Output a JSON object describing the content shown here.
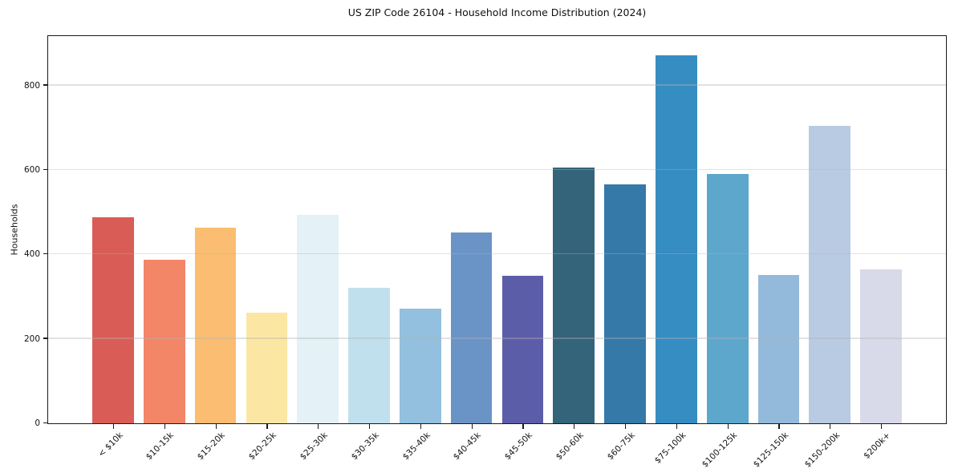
{
  "title": "US ZIP Code 26104 - Household Income Distribution (2024)",
  "chart_data": {
    "type": "bar",
    "title": "US ZIP Code 26104 - Household Income Distribution (2024)",
    "xlabel": "",
    "ylabel": "Households",
    "ylim": [
      0,
      916
    ],
    "yticks": [
      0,
      200,
      400,
      600,
      800
    ],
    "grid": "horizontal",
    "legend": "none",
    "categories": [
      "< $10k",
      "$10-15k",
      "$15-20k",
      "$20-25k",
      "$25-30k",
      "$30-35k",
      "$35-40k",
      "$40-45k",
      "$45-50k",
      "$50-60k",
      "$60-75k",
      "$75-100k",
      "$100-125k",
      "$125-150k",
      "$150-200k",
      "$200k+"
    ],
    "values": [
      487,
      388,
      463,
      262,
      494,
      320,
      272,
      452,
      350,
      606,
      565,
      872,
      590,
      352,
      705,
      365
    ],
    "bar_colors": [
      "#d95d56",
      "#f28667",
      "#fabd71",
      "#fbe7a3",
      "#e4f1f6",
      "#c1e0ed",
      "#92c0de",
      "#6b94c6",
      "#5c5da9",
      "#34647a",
      "#3579a8",
      "#368dc1",
      "#5ea7cc",
      "#93badb",
      "#b9cbe2",
      "#d8dae9"
    ]
  }
}
